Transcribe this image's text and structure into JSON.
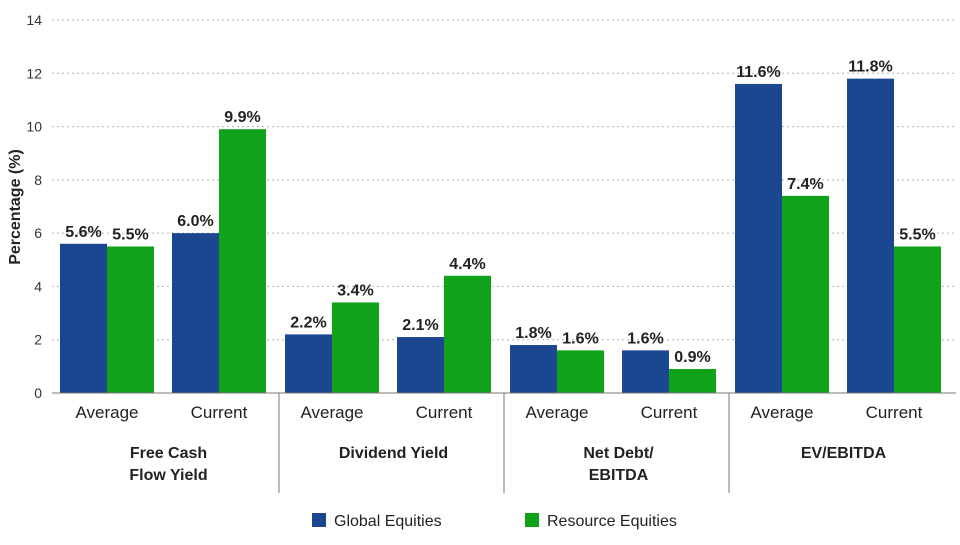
{
  "chart_data": {
    "type": "bar",
    "ylabel": "Percentage (%)",
    "ylim": [
      0,
      14
    ],
    "yticks": [
      0,
      2,
      4,
      6,
      8,
      10,
      12,
      14
    ],
    "grid": true,
    "legend_position": "bottom",
    "value_suffix": "%",
    "groups": [
      {
        "label_lines": [
          "Free Cash",
          "Flow Yield"
        ],
        "categories": [
          "Average",
          "Current"
        ]
      },
      {
        "label_lines": [
          "Dividend Yield"
        ],
        "categories": [
          "Average",
          "Current"
        ]
      },
      {
        "label_lines": [
          "Net Debt/",
          "EBITDA"
        ],
        "categories": [
          "Average",
          "Current"
        ]
      },
      {
        "label_lines": [
          "EV/EBITDA"
        ],
        "categories": [
          "Average",
          "Current"
        ]
      }
    ],
    "series": [
      {
        "name": "Global Equities",
        "color": "#1b4690",
        "values": [
          5.6,
          6.0,
          2.2,
          2.1,
          1.8,
          1.6,
          11.6,
          11.8
        ]
      },
      {
        "name": "Resource Equities",
        "color": "#10a21b",
        "values": [
          5.5,
          9.9,
          3.4,
          4.4,
          1.6,
          0.9,
          7.4,
          5.5
        ]
      }
    ]
  }
}
